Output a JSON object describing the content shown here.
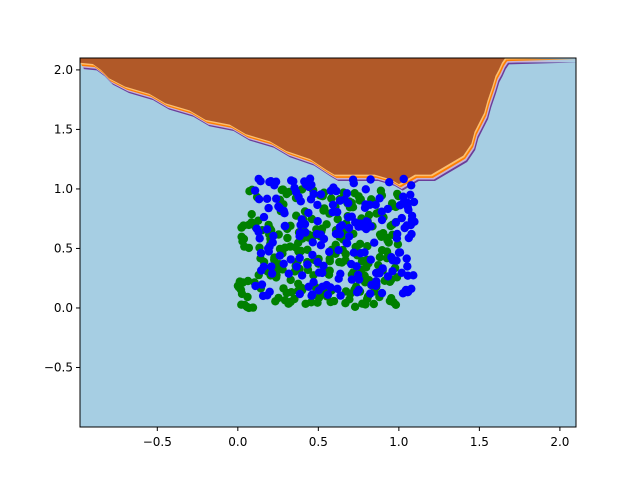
{
  "chart_data": {
    "type": "scatter",
    "title": "",
    "xlabel": "",
    "ylabel": "",
    "xlim": [
      -0.98,
      2.1
    ],
    "ylim": [
      -1.0,
      2.1
    ],
    "grid": false,
    "x_ticks": [
      {
        "value": -0.5,
        "label": "−0.5"
      },
      {
        "value": 0.0,
        "label": "0.0"
      },
      {
        "value": 0.5,
        "label": "0.5"
      },
      {
        "value": 1.0,
        "label": "1.0"
      },
      {
        "value": 1.5,
        "label": "1.5"
      },
      {
        "value": 2.0,
        "label": "2.0"
      }
    ],
    "y_ticks": [
      {
        "value": -0.5,
        "label": "−0.5"
      },
      {
        "value": 0.0,
        "label": "0.0"
      },
      {
        "value": 0.5,
        "label": "0.5"
      },
      {
        "value": 1.0,
        "label": "1.0"
      },
      {
        "value": 1.5,
        "label": "1.5"
      },
      {
        "value": 2.0,
        "label": "2.0"
      }
    ],
    "decision_regions": {
      "background_color": "#a6cee3",
      "region_color": "#b15928",
      "boundary_colors": [
        "#fdbf6f",
        "#ff7f00",
        "#cab2d6",
        "#6a3d9a"
      ],
      "boundary": [
        [
          -0.98,
          2.06
        ],
        [
          -0.9,
          2.05
        ],
        [
          -0.85,
          2.0
        ],
        [
          -0.8,
          1.93
        ],
        [
          -0.7,
          1.86
        ],
        [
          -0.55,
          1.8
        ],
        [
          -0.45,
          1.72
        ],
        [
          -0.3,
          1.66
        ],
        [
          -0.2,
          1.58
        ],
        [
          -0.05,
          1.54
        ],
        [
          0.05,
          1.46
        ],
        [
          0.2,
          1.4
        ],
        [
          0.3,
          1.32
        ],
        [
          0.45,
          1.25
        ],
        [
          0.55,
          1.16
        ],
        [
          0.6,
          1.12
        ],
        [
          0.85,
          1.12
        ],
        [
          0.95,
          1.08
        ],
        [
          1.0,
          1.04
        ],
        [
          1.05,
          1.08
        ],
        [
          1.1,
          1.12
        ],
        [
          1.2,
          1.12
        ],
        [
          1.3,
          1.2
        ],
        [
          1.4,
          1.28
        ],
        [
          1.45,
          1.38
        ],
        [
          1.47,
          1.48
        ],
        [
          1.5,
          1.56
        ],
        [
          1.53,
          1.64
        ],
        [
          1.55,
          1.74
        ],
        [
          1.58,
          1.86
        ],
        [
          1.6,
          1.95
        ],
        [
          1.62,
          2.0
        ],
        [
          1.64,
          2.06
        ],
        [
          1.66,
          2.1
        ]
      ]
    },
    "series": [
      {
        "color": "#008000",
        "seed": 11,
        "count": 260,
        "x_range": [
          0.0,
          1.0
        ],
        "y_range": [
          0.0,
          1.0
        ]
      },
      {
        "color": "#0000ff",
        "seed": 29,
        "count": 200,
        "x_range": [
          0.1,
          1.12
        ],
        "y_range": [
          0.1,
          1.1
        ]
      }
    ]
  }
}
